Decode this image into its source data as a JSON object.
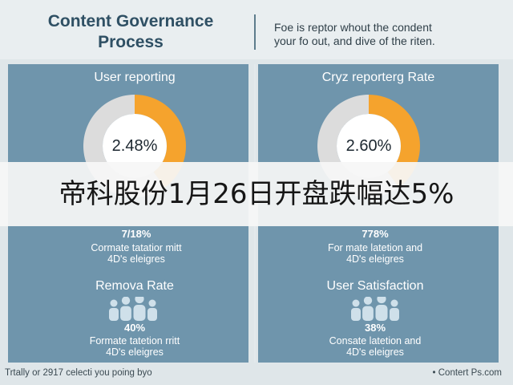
{
  "header": {
    "title_line1": "Content Governance",
    "title_line2": "Process",
    "subtitle_line1": "Foe is reptor whout the condent",
    "subtitle_line2": "your fo out, and dive of the riten."
  },
  "banner": {
    "text": "帝科股份1月26日开盘跌幅达5%"
  },
  "footer": {
    "left": "Trtally or 2917 celecti you poing byo",
    "right": "• Contert Ps.com"
  },
  "colors": {
    "panel": "#6f95ac",
    "donut_fill": "#f5a32d",
    "donut_track": "#dcdcdc",
    "donut_center": "#ffffff",
    "person_icon": "#cfe0ea"
  },
  "icons": [
    "people-group-icon"
  ],
  "chart_data": [
    {
      "type": "pie",
      "title": "User reporting",
      "center_label": "2.48%",
      "values": [
        0.4,
        0.6
      ],
      "stat_value": "7/18%",
      "stat_desc_line1": "Cormate tatatior mitt",
      "stat_desc_line2": "4D's eleigres"
    },
    {
      "type": "pie",
      "title": "Cryz reporterg Rate",
      "center_label": "2.60%",
      "values": [
        0.4,
        0.6
      ],
      "stat_value": "778%",
      "stat_desc_line1": "For mate latetion and",
      "stat_desc_line2": "4D's eleigres"
    },
    {
      "type": "table",
      "title": "Remova Rate",
      "stat_value": "40%",
      "stat_desc_line1": "Formate tatetion rritt",
      "stat_desc_line2": "4D's eleigres"
    },
    {
      "type": "table",
      "title": "User Satisfaction",
      "stat_value": "38%",
      "stat_desc_line1": "Consate latetion and",
      "stat_desc_line2": "4D's eleigres"
    }
  ]
}
